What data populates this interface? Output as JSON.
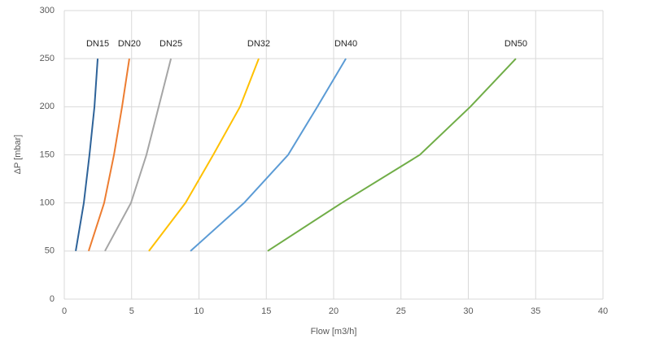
{
  "chart_data": {
    "type": "line",
    "x_label": "Flow [m3/h]",
    "y_label": "ΔP [mbar]",
    "xlim": [
      0,
      40
    ],
    "xticks": [
      0,
      5,
      10,
      15,
      20,
      25,
      30,
      35,
      40
    ],
    "ylim": [
      0,
      300
    ],
    "yticks": [
      0,
      50,
      100,
      150,
      200,
      250,
      300
    ],
    "grid": true,
    "series": [
      {
        "name": "DN15",
        "color": "#2e6399",
        "x": [
          0.85,
          1.45,
          1.87,
          2.24,
          2.48
        ],
        "values": [
          50,
          100,
          150,
          200,
          250
        ]
      },
      {
        "name": "DN20",
        "color": "#ed7d31",
        "x": [
          1.81,
          2.96,
          3.69,
          4.29,
          4.83
        ],
        "values": [
          50,
          100,
          150,
          200,
          250
        ]
      },
      {
        "name": "DN25",
        "color": "#a5a5a5",
        "x": [
          3.02,
          4.95,
          6.1,
          7.01,
          7.92
        ],
        "values": [
          50,
          100,
          150,
          200,
          250
        ]
      },
      {
        "name": "DN32",
        "color": "#ffc000",
        "x": [
          6.28,
          9.0,
          11.06,
          13.05,
          14.44
        ],
        "values": [
          50,
          100,
          150,
          200,
          250
        ]
      },
      {
        "name": "DN40",
        "color": "#5b9bd5",
        "x": [
          9.37,
          13.35,
          16.62,
          18.79,
          20.91
        ],
        "values": [
          50,
          100,
          150,
          200,
          250
        ]
      },
      {
        "name": "DN50",
        "color": "#70ad47",
        "x": [
          15.1,
          20.6,
          26.4,
          30.15,
          33.53
        ],
        "values": [
          50,
          100,
          150,
          200,
          250
        ]
      }
    ]
  }
}
